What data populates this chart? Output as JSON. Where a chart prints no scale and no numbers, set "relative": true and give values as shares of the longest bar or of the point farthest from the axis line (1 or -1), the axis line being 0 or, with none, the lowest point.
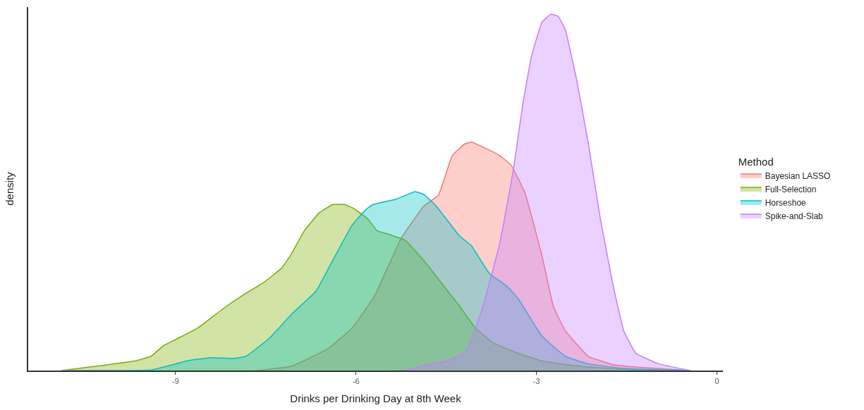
{
  "chart_data": {
    "type": "area",
    "relative": true,
    "xlabel": "Drinks per Drinking Day at 8th Week",
    "ylabel": "density",
    "legend_title": "Method",
    "legend": "right",
    "grid": false,
    "xlim": [
      -11.45,
      0.1
    ],
    "xticks": [
      -9,
      -6,
      -3,
      0
    ],
    "series": [
      {
        "name": "Bayesian LASSO",
        "color": "#f8766d",
        "x": [
          -10.9,
          -7.64,
          -7.06,
          -6.47,
          -6.07,
          -5.69,
          -5.25,
          -4.87,
          -4.63,
          -4.4,
          -4.2,
          -4.08,
          -3.85,
          -3.61,
          -3.42,
          -3.19,
          -2.91,
          -2.72,
          -2.52,
          -2.14,
          -1.74,
          -1.35,
          -0.44
        ],
        "values": [
          0,
          0,
          0.013,
          0.061,
          0.118,
          0.21,
          0.371,
          0.462,
          0.492,
          0.603,
          0.635,
          0.641,
          0.624,
          0.603,
          0.576,
          0.498,
          0.323,
          0.181,
          0.112,
          0.04,
          0.017,
          0.01,
          0
        ]
      },
      {
        "name": "Full-Selection",
        "color": "#7cae00",
        "x": [
          -10.9,
          -10.1,
          -9.67,
          -9.41,
          -9.2,
          -9.0,
          -8.61,
          -8.23,
          -7.83,
          -7.52,
          -7.24,
          -7.09,
          -6.86,
          -6.62,
          -6.39,
          -6.19,
          -6.04,
          -5.8,
          -5.65,
          -5.45,
          -5.18,
          -4.87,
          -4.48,
          -4.28,
          -4.01,
          -3.7,
          -3.31,
          -2.91,
          -2.52,
          -2.14,
          -1.5,
          -0.44
        ],
        "values": [
          0,
          0.017,
          0.027,
          0.04,
          0.07,
          0.087,
          0.122,
          0.171,
          0.217,
          0.249,
          0.287,
          0.323,
          0.392,
          0.441,
          0.466,
          0.466,
          0.455,
          0.425,
          0.392,
          0.382,
          0.365,
          0.308,
          0.224,
          0.181,
          0.118,
          0.076,
          0.049,
          0.027,
          0.017,
          0.01,
          0.003,
          0
        ]
      },
      {
        "name": "Horseshoe",
        "color": "#00bfc4",
        "x": [
          -10.9,
          -9.4,
          -8.81,
          -8.41,
          -8.03,
          -7.83,
          -7.44,
          -7.06,
          -6.66,
          -6.39,
          -6.07,
          -5.84,
          -5.72,
          -5.33,
          -5.02,
          -4.87,
          -4.67,
          -4.28,
          -4.08,
          -3.78,
          -3.5,
          -3.31,
          -2.91,
          -2.52,
          -2.14,
          -1.55,
          -0.44
        ],
        "values": [
          0,
          0.002,
          0.027,
          0.036,
          0.034,
          0.04,
          0.091,
          0.16,
          0.224,
          0.308,
          0.407,
          0.451,
          0.466,
          0.481,
          0.502,
          0.494,
          0.462,
          0.378,
          0.35,
          0.272,
          0.238,
          0.203,
          0.097,
          0.04,
          0.019,
          0.006,
          0
        ]
      },
      {
        "name": "Spike-and-Slab",
        "color": "#c77cff",
        "x": [
          -10.9,
          -5.2,
          -4.87,
          -4.48,
          -4.16,
          -3.89,
          -3.61,
          -3.38,
          -3.23,
          -3.08,
          -2.91,
          -2.76,
          -2.64,
          -2.52,
          -2.33,
          -2.14,
          -1.94,
          -1.74,
          -1.55,
          -1.35,
          -0.97,
          -0.44
        ],
        "values": [
          0,
          0,
          0.015,
          0.027,
          0.055,
          0.181,
          0.357,
          0.568,
          0.745,
          0.884,
          0.977,
          1.0,
          0.994,
          0.956,
          0.814,
          0.639,
          0.428,
          0.251,
          0.112,
          0.049,
          0.019,
          0
        ]
      }
    ]
  }
}
